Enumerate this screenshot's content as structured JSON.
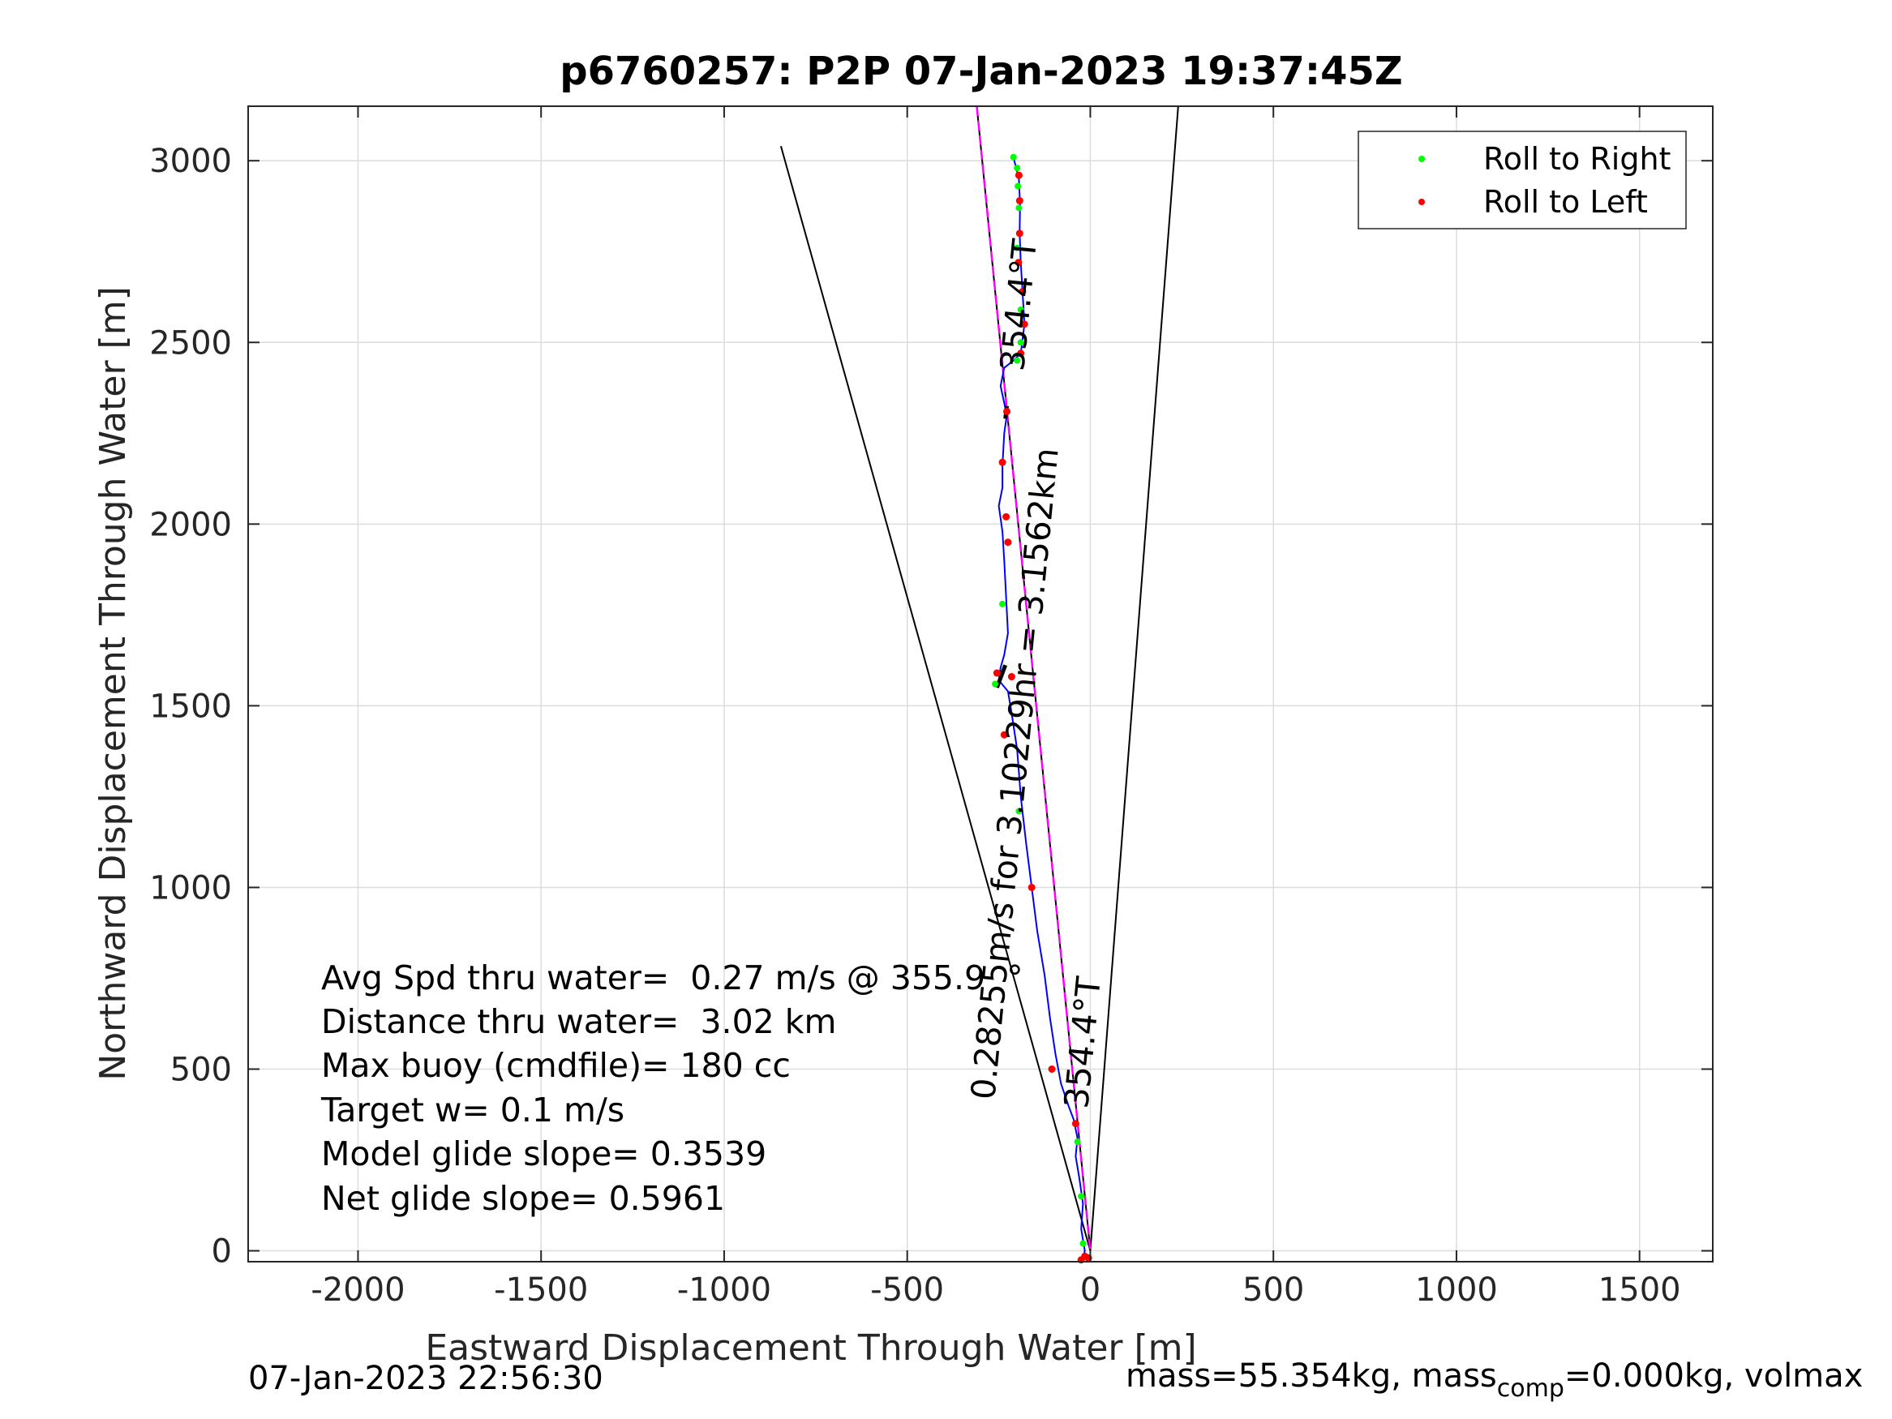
{
  "chart_data": {
    "type": "scatter",
    "title": "p6760257: P2P 07-Jan-2023 19:37:45Z",
    "xlabel": "Eastward Displacement Through Water [m]",
    "ylabel": "Northward Displacement Through Water [m]",
    "xlim": [
      -2300,
      1700
    ],
    "ylim": [
      -30,
      3150
    ],
    "xticks": [
      -2000,
      -1500,
      -1000,
      -500,
      0,
      500,
      1000,
      1500
    ],
    "yticks": [
      0,
      500,
      1000,
      1500,
      2000,
      2500,
      3000
    ],
    "grid": true,
    "legend": {
      "position": "top-right",
      "entries": [
        {
          "name": "Roll to Right",
          "color": "#00ff00"
        },
        {
          "name": "Roll to Left",
          "color": "#ff0000"
        }
      ]
    },
    "track_color": "#0000ff",
    "course_color": "#ff00ff",
    "track": [
      [
        -20,
        -20
      ],
      [
        -15,
        0
      ],
      [
        -25,
        60
      ],
      [
        -20,
        130
      ],
      [
        -30,
        200
      ],
      [
        -40,
        260
      ],
      [
        -35,
        310
      ],
      [
        -45,
        360
      ],
      [
        -60,
        400
      ],
      [
        -80,
        460
      ],
      [
        -95,
        540
      ],
      [
        -110,
        640
      ],
      [
        -125,
        760
      ],
      [
        -145,
        880
      ],
      [
        -160,
        1000
      ],
      [
        -175,
        1120
      ],
      [
        -190,
        1250
      ],
      [
        -200,
        1380
      ],
      [
        -215,
        1480
      ],
      [
        -225,
        1540
      ],
      [
        -250,
        1570
      ],
      [
        -245,
        1605
      ],
      [
        -235,
        1640
      ],
      [
        -225,
        1700
      ],
      [
        -230,
        1800
      ],
      [
        -235,
        1900
      ],
      [
        -240,
        1980
      ],
      [
        -250,
        2050
      ],
      [
        -240,
        2100
      ],
      [
        -240,
        2160
      ],
      [
        -235,
        2250
      ],
      [
        -228,
        2300
      ],
      [
        -245,
        2380
      ],
      [
        -235,
        2430
      ],
      [
        -210,
        2450
      ],
      [
        -190,
        2470
      ],
      [
        -180,
        2550
      ],
      [
        -185,
        2640
      ],
      [
        -190,
        2720
      ],
      [
        -193,
        2800
      ],
      [
        -192,
        2880
      ],
      [
        -195,
        2950
      ],
      [
        -210,
        3010
      ]
    ],
    "roll_right": [
      [
        -210,
        3010
      ],
      [
        -200,
        2980
      ],
      [
        -198,
        2930
      ],
      [
        -195,
        2870
      ],
      [
        -200,
        2760
      ],
      [
        -190,
        2590
      ],
      [
        -190,
        2500
      ],
      [
        -200,
        2450
      ],
      [
        -240,
        1780
      ],
      [
        -260,
        1560
      ],
      [
        -195,
        1210
      ],
      [
        -35,
        300
      ],
      [
        -25,
        150
      ],
      [
        -20,
        20
      ]
    ],
    "roll_left": [
      [
        -195,
        2960
      ],
      [
        -193,
        2890
      ],
      [
        -193,
        2800
      ],
      [
        -196,
        2720
      ],
      [
        -185,
        2640
      ],
      [
        -180,
        2550
      ],
      [
        -190,
        2470
      ],
      [
        -228,
        2310
      ],
      [
        -240,
        2170
      ],
      [
        -230,
        2020
      ],
      [
        -225,
        1950
      ],
      [
        -255,
        1590
      ],
      [
        -215,
        1580
      ],
      [
        -235,
        1420
      ],
      [
        -160,
        1000
      ],
      [
        -105,
        500
      ],
      [
        -40,
        350
      ],
      [
        -15,
        -15
      ],
      [
        -25,
        -25
      ],
      [
        -5,
        -20
      ]
    ],
    "course_line": [
      [
        -310,
        3150
      ],
      [
        0,
        0
      ]
    ],
    "cone_lines": [
      [
        [
          -845,
          3040
        ],
        [
          0,
          0
        ]
      ],
      [
        [
          240,
          3150
        ],
        [
          0,
          0
        ]
      ]
    ],
    "heading_labels": [
      {
        "text": "354.4°T",
        "x": -165,
        "y": 2600,
        "angle": -84.4
      },
      {
        "text": "354.4°T",
        "x": 10,
        "y": 570,
        "angle": -84.4
      }
    ],
    "track_label": {
      "text": "0.28255m/s for 3.10229hr = 3.1562km",
      "x": -175,
      "y": 1310,
      "angle": -84.4
    },
    "annotations": [
      "Avg Spd thru water=  0.27 m/s @ 355.9  °",
      "Distance thru water=  3.02 km",
      "Max buoy (cmdfile)= 180 cc",
      "Target w= 0.1 m/s",
      "Model glide slope= 0.3539",
      "Net glide slope= 0.5961"
    ]
  },
  "footer": {
    "date": "07-Jan-2023 22:56:30",
    "mass_text": "mass=55.354kg, mass",
    "mass_sub": "comp",
    "mass_tail": "=0.000kg, volmax"
  }
}
